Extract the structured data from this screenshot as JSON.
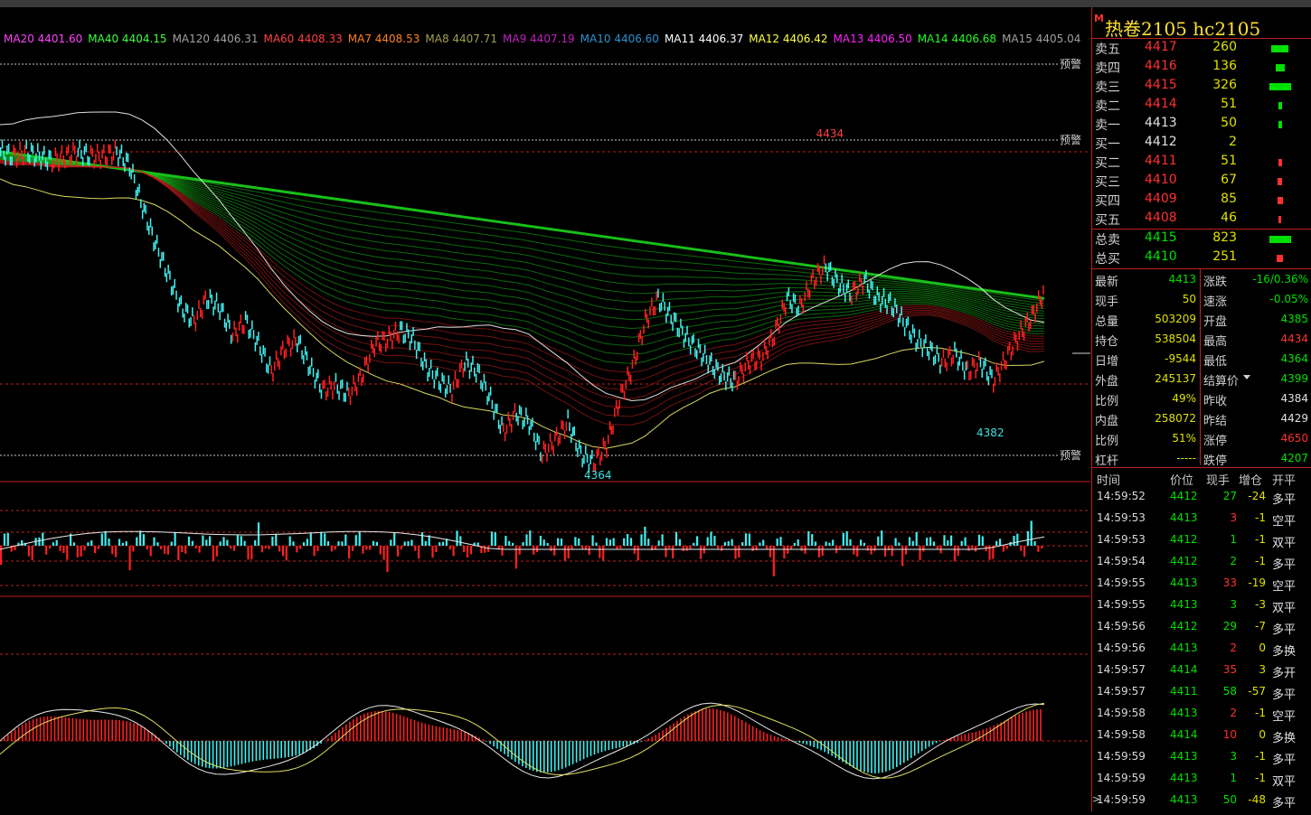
{
  "ma_legend": [
    {
      "label": "MA20 4401.60",
      "color": "#ff40ff"
    },
    {
      "label": "MA40 4404.15",
      "color": "#40ff40"
    },
    {
      "label": "MA120 4406.31",
      "color": "#a0a0a0"
    },
    {
      "label": "MA60 4408.33",
      "color": "#ff4040"
    },
    {
      "label": "MA7 4408.53",
      "color": "#ff8020"
    },
    {
      "label": "MA8 4407.71",
      "color": "#a0a050"
    },
    {
      "label": "MA9 4407.19",
      "color": "#c020c0"
    },
    {
      "label": "MA10 4406.60",
      "color": "#3090d0"
    },
    {
      "label": "MA11 4406.37",
      "color": "#ffffff"
    },
    {
      "label": "MA12 4406.42",
      "color": "#ffff40"
    },
    {
      "label": "MA13 4406.50",
      "color": "#ff20ff"
    },
    {
      "label": "MA14 4406.68",
      "color": "#20ff20"
    },
    {
      "label": "MA15 4405.04",
      "color": "#a0a0a0"
    }
  ],
  "alerts": [
    "预警",
    "预警",
    "预警"
  ],
  "markers": {
    "high": "4434",
    "low": "4364",
    "mid_low": "4382"
  },
  "title": {
    "m": "M",
    "name": "热卷2105  hc2105"
  },
  "asks": [
    {
      "label": "卖五",
      "price": "4417",
      "vol": "260",
      "bar": 0.8
    },
    {
      "label": "卖四",
      "price": "4416",
      "vol": "136",
      "bar": 0.42
    },
    {
      "label": "卖三",
      "price": "4415",
      "vol": "326",
      "bar": 1.0
    },
    {
      "label": "卖二",
      "price": "4414",
      "vol": "51",
      "bar": 0.16
    },
    {
      "label": "卖一",
      "price": "4413",
      "vol": "50",
      "bar": 0.15
    }
  ],
  "bids": [
    {
      "label": "买一",
      "price": "4412",
      "vol": "2",
      "bar": 0.0
    },
    {
      "label": "买二",
      "price": "4411",
      "vol": "51",
      "bar": 0.16
    },
    {
      "label": "买三",
      "price": "4410",
      "vol": "67",
      "bar": 0.2
    },
    {
      "label": "买四",
      "price": "4409",
      "vol": "85",
      "bar": 0.26
    },
    {
      "label": "买五",
      "price": "4408",
      "vol": "46",
      "bar": 0.14
    }
  ],
  "totals": [
    {
      "label": "总卖",
      "price": "4415",
      "vol": "823",
      "bar": 1.0,
      "color": "#00e000"
    },
    {
      "label": "总买",
      "price": "4410",
      "vol": "251",
      "bar": 0.3,
      "color": "#ff3030"
    }
  ],
  "stats_left": [
    {
      "k": "最新",
      "v": "4413",
      "c": "#00e000"
    },
    {
      "k": "现手",
      "v": "50",
      "c": "#e0e000"
    },
    {
      "k": "总量",
      "v": "503209",
      "c": "#e0e000"
    },
    {
      "k": "持仓",
      "v": "538504",
      "c": "#e0e000"
    },
    {
      "k": "日增",
      "v": "-9544",
      "c": "#e0e000"
    },
    {
      "k": "外盘",
      "v": "245137",
      "c": "#e0e000"
    },
    {
      "k": "比例",
      "v": "49%",
      "c": "#e0e000"
    },
    {
      "k": "内盘",
      "v": "258072",
      "c": "#e0e000"
    },
    {
      "k": "比例",
      "v": "51%",
      "c": "#e0e000"
    },
    {
      "k": "杠杆",
      "v": "-----",
      "c": "#e0e000"
    }
  ],
  "stats_right": [
    {
      "k": "涨跌",
      "v": "-16/0.36%",
      "c": "#00e000"
    },
    {
      "k": "速涨",
      "v": "-0.05%",
      "c": "#00e000"
    },
    {
      "k": "开盘",
      "v": "4385",
      "c": "#00e000"
    },
    {
      "k": "最高",
      "v": "4434",
      "c": "#ff3030"
    },
    {
      "k": "最低",
      "v": "4364",
      "c": "#00e000"
    },
    {
      "k": "结算价",
      "v": "4399",
      "c": "#00e000"
    },
    {
      "k": "昨收",
      "v": "4384",
      "c": "#e0e0e0"
    },
    {
      "k": "昨结",
      "v": "4429",
      "c": "#e0e0e0"
    },
    {
      "k": "涨停",
      "v": "4650",
      "c": "#ff3030"
    },
    {
      "k": "跌停",
      "v": "4207",
      "c": "#00e000"
    }
  ],
  "tick_header": [
    "时间",
    "价位",
    "现手",
    "增仓",
    "开平"
  ],
  "ticks": [
    {
      "t": "14:59:52",
      "p": "4412",
      "q": "27",
      "d": "-24",
      "ty": "多平",
      "qc": "#00e000"
    },
    {
      "t": "14:59:53",
      "p": "4413",
      "q": "3",
      "d": "-1",
      "ty": "空平",
      "qc": "#ff3030"
    },
    {
      "t": "14:59:53",
      "p": "4412",
      "q": "1",
      "d": "-1",
      "ty": "双平",
      "qc": "#00e000"
    },
    {
      "t": "14:59:54",
      "p": "4412",
      "q": "2",
      "d": "-1",
      "ty": "多平",
      "qc": "#00e000"
    },
    {
      "t": "14:59:55",
      "p": "4413",
      "q": "33",
      "d": "-19",
      "ty": "空平",
      "qc": "#ff3030"
    },
    {
      "t": "14:59:55",
      "p": "4413",
      "q": "3",
      "d": "-3",
      "ty": "双平",
      "qc": "#00e000"
    },
    {
      "t": "14:59:56",
      "p": "4412",
      "q": "29",
      "d": "-7",
      "ty": "多平",
      "qc": "#00e000"
    },
    {
      "t": "14:59:56",
      "p": "4413",
      "q": "2",
      "d": "0",
      "ty": "多换",
      "qc": "#ff3030"
    },
    {
      "t": "14:59:57",
      "p": "4414",
      "q": "35",
      "d": "3",
      "ty": "多开",
      "qc": "#ff3030"
    },
    {
      "t": "14:59:57",
      "p": "4411",
      "q": "58",
      "d": "-57",
      "ty": "多平",
      "qc": "#00e000"
    },
    {
      "t": "14:59:58",
      "p": "4413",
      "q": "2",
      "d": "-1",
      "ty": "空平",
      "qc": "#ff3030"
    },
    {
      "t": "14:59:58",
      "p": "4414",
      "q": "10",
      "d": "0",
      "ty": "多换",
      "qc": "#ff3030"
    },
    {
      "t": "14:59:59",
      "p": "4413",
      "q": "3",
      "d": "-1",
      "ty": "多平",
      "qc": "#00e000"
    },
    {
      "t": "14:59:59",
      "p": "4413",
      "q": "1",
      "d": "-1",
      "ty": "双平",
      "qc": "#00e000"
    },
    {
      "t": "14:59:59",
      "p": "4413",
      "q": "50",
      "d": "-48",
      "ty": "多平",
      "qc": "#00e000"
    }
  ],
  "price_curve": [
    4432,
    4431,
    4432,
    4431,
    4430,
    4431,
    4432,
    4431,
    4431,
    4432,
    4429,
    4420,
    4412,
    4405,
    4398,
    4395,
    4400,
    4398,
    4392,
    4395,
    4390,
    4384,
    4389,
    4391,
    4385,
    4380,
    4381,
    4379,
    4383,
    4390,
    4391,
    4393,
    4391,
    4385,
    4382,
    4380,
    4386,
    4384,
    4378,
    4371,
    4375,
    4373,
    4366,
    4369,
    4373,
    4366,
    4364,
    4368,
    4378,
    4385,
    4395,
    4400,
    4396,
    4392,
    4389,
    4386,
    4383,
    4382,
    4386,
    4387,
    4392,
    4400,
    4398,
    4404,
    4407,
    4403,
    4401,
    4404,
    4400,
    4399,
    4395,
    4391,
    4389,
    4386,
    4388,
    4384,
    4386,
    4382,
    4387,
    4392,
    4396,
    4402
  ],
  "colors": {
    "up": "#ff2020",
    "down": "#40f0f0",
    "ma_green": "#18c018",
    "grid": "#c0201c"
  }
}
